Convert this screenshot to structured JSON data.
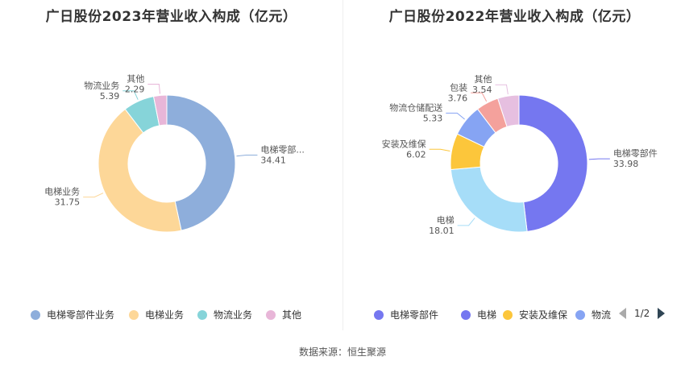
{
  "source_text": "数据来源：恒生聚源",
  "chart_data": [
    {
      "type": "pie",
      "title": "广日股份2023年营业收入构成（亿元）",
      "slices": [
        {
          "name": "电梯零部件业务",
          "label": "电梯零部...",
          "value": 34.41,
          "value_text": "34.41",
          "color": "#8eaedb"
        },
        {
          "name": "电梯业务",
          "label": "电梯业务",
          "value": 31.75,
          "value_text": "31.75",
          "color": "#fdd798"
        },
        {
          "name": "物流业务",
          "label": "物流业务",
          "value": 5.39,
          "value_text": "5.39",
          "color": "#86d4d9"
        },
        {
          "name": "其他",
          "label": "其他",
          "value": 2.29,
          "value_text": "2.29",
          "color": "#e8b6d8"
        }
      ],
      "legend": [
        "电梯零部件业务",
        "电梯业务",
        "物流业务",
        "其他"
      ],
      "legend_placement": "bottom"
    },
    {
      "type": "pie",
      "title": "广日股份2022年营业收入构成（亿元）",
      "slices": [
        {
          "name": "电梯零部件",
          "label": "电梯零部件",
          "value": 33.98,
          "value_text": "33.98",
          "color": "#7577f0"
        },
        {
          "name": "电梯",
          "label": "电梯",
          "value": 18.01,
          "value_text": "18.01",
          "color": "#a6ddf8"
        },
        {
          "name": "安装及维保",
          "label": "安装及维保",
          "value": 6.02,
          "value_text": "6.02",
          "color": "#fcc63b"
        },
        {
          "name": "物流仓储配送",
          "label": "物流仓储配送",
          "value": 5.33,
          "value_text": "5.33",
          "color": "#86a4f3"
        },
        {
          "name": "包装",
          "label": "包装",
          "value": 3.76,
          "value_text": "3.76",
          "color": "#f4a19c"
        },
        {
          "name": "其他",
          "label": "其他",
          "value": 3.54,
          "value_text": "3.54",
          "color": "#e6bfe0"
        }
      ],
      "legend": [
        "电梯零部件",
        "电梯",
        "安装及维保",
        "物流"
      ],
      "legend_placement": "bottom",
      "legend_page": "1/2"
    }
  ]
}
